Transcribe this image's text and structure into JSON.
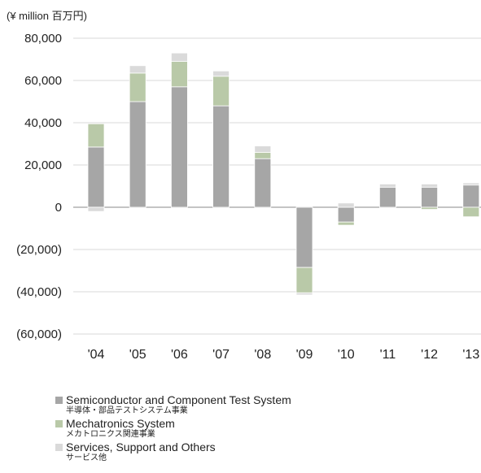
{
  "unit_label": "(¥ million  百万円)",
  "colors": {
    "semiconductor": "#a6a6a6",
    "mechatronics": "#b9c9a8",
    "services": "#dadada",
    "gridline": "#cccccc",
    "zero_line": "#888888"
  },
  "chart_data": {
    "type": "bar",
    "stacked": true,
    "categories": [
      "'04",
      "'05",
      "'06",
      "'07",
      "'08",
      "'09",
      "'10",
      "'11",
      "'12",
      "'13"
    ],
    "series": [
      {
        "name": "Semiconductor and Component Test System",
        "name_jp": "半導体・部品テストシステム事業",
        "color_key": "semiconductor",
        "values": [
          28500,
          50000,
          57000,
          48000,
          23000,
          -28500,
          -7000,
          9500,
          9500,
          10500
        ]
      },
      {
        "name": "Mechatronics System",
        "name_jp": "メカトロニクス関連事業",
        "color_key": "mechatronics",
        "values": [
          11000,
          13500,
          12000,
          14000,
          3000,
          -12000,
          -1500,
          0,
          -1000,
          -4500
        ]
      },
      {
        "name": "Services, Support and Others",
        "name_jp": "サービス他",
        "color_key": "services",
        "values": [
          -2000,
          3500,
          4000,
          2500,
          3000,
          -1000,
          2000,
          1500,
          1500,
          1000
        ]
      }
    ],
    "ylim": [
      -60000,
      80000
    ],
    "yticks": [
      80000,
      60000,
      40000,
      20000,
      0,
      -20000,
      -40000,
      -60000
    ],
    "ytick_labels": [
      "80,000",
      "60,000",
      "40,000",
      "20,000",
      "0",
      "(20,000)",
      "(40,000)",
      "(60,000)"
    ],
    "grid": true,
    "legend_position": "bottom-left"
  }
}
